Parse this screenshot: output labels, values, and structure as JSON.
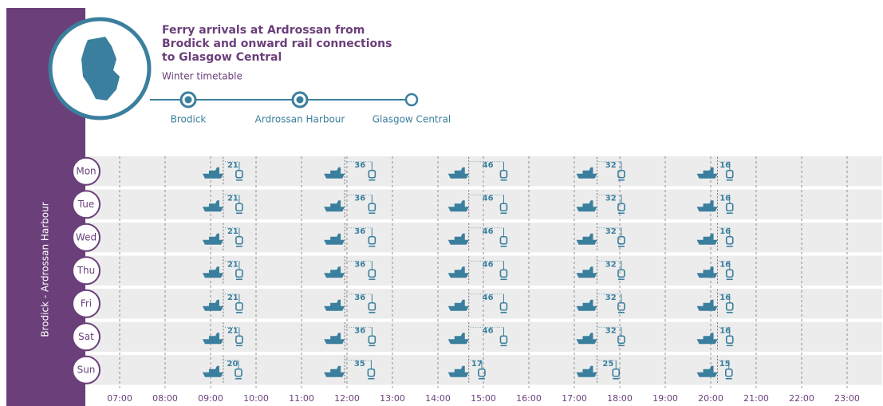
{
  "title_lines": [
    "Ferry arrivals at Ardrossan from",
    "Brodick and onward rail connections",
    "to Glasgow Central"
  ],
  "subtitle": "Winter timetable",
  "stops": [
    "Brodick",
    "Ardrossan Harbour",
    "Glasgow Central"
  ],
  "route_label": "Brodick - Ardrossan Harbour",
  "hours": [
    "07:00",
    "08:00",
    "09:00",
    "10:00",
    "11:00",
    "12:00",
    "13:00",
    "14:00",
    "15:00",
    "16:00",
    "17:00",
    "18:00",
    "19:00",
    "20:00",
    "21:00",
    "22:00",
    "23:00"
  ],
  "hours_start": 7,
  "ferry_arrivals": [
    9.28,
    11.95,
    14.68,
    17.5,
    20.15
  ],
  "days": [
    {
      "label": "Mon",
      "waits": [
        21,
        36,
        46,
        32,
        16
      ]
    },
    {
      "label": "Tue",
      "waits": [
        21,
        36,
        46,
        32,
        16
      ]
    },
    {
      "label": "Wed",
      "waits": [
        21,
        36,
        46,
        32,
        16
      ]
    },
    {
      "label": "Thu",
      "waits": [
        21,
        36,
        46,
        32,
        16
      ]
    },
    {
      "label": "Fri",
      "waits": [
        21,
        36,
        46,
        32,
        16
      ]
    },
    {
      "label": "Sat",
      "waits": [
        21,
        36,
        46,
        32,
        16
      ]
    },
    {
      "label": "Sun",
      "waits": [
        20,
        35,
        17,
        25,
        15
      ]
    }
  ]
}
